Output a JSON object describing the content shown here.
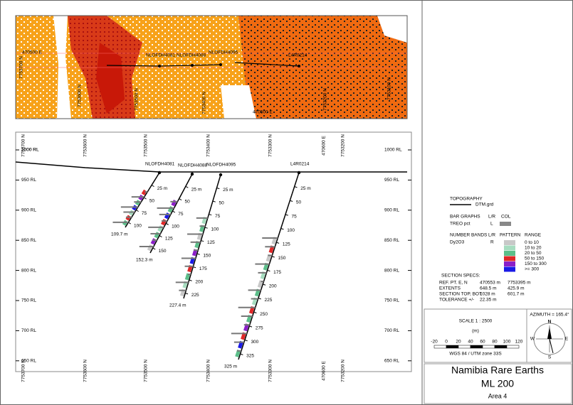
{
  "plan": {
    "labels": [
      "NLOFDH4081",
      "NLOFDH4088",
      "NLOFDH4095",
      "L4R0214",
      "470500 E",
      "470500 E",
      "7753700 N",
      "7753600 N",
      "7753500 N",
      "7753400 N",
      "7753200 N",
      "7753100 N"
    ]
  },
  "section": {
    "rl_labels": [
      "1000 RL",
      "950 RL",
      "900 RL",
      "850 RL",
      "800 RL",
      "750 RL",
      "700 RL",
      "650 RL"
    ],
    "grid_labels": [
      "7753700 N",
      "7753600 N",
      "7753500 N",
      "7753400 N",
      "7753300 N",
      "470600 E",
      "7753200 N",
      "1000 RL"
    ],
    "holes": [
      {
        "name": "NLOFDH4081",
        "depths": [
          "25 m",
          "50",
          "75",
          "100"
        ],
        "end": "109.7 m"
      },
      {
        "name": "NLOFDH4088",
        "depths": [
          "25 m",
          "50",
          "75",
          "100",
          "125",
          "150"
        ],
        "end": "152.3 m"
      },
      {
        "name": "NLOFDH4095",
        "depths": [
          "25 m",
          "50",
          "75",
          "100",
          "125",
          "150",
          "175",
          "200",
          "225"
        ],
        "end": "227.4 m"
      },
      {
        "name": "L4R0214",
        "depths": [
          "25 m",
          "50",
          "75",
          "100",
          "125",
          "150",
          "175",
          "200",
          "225",
          "250",
          "275",
          "300",
          "325"
        ],
        "end": "325 m"
      }
    ]
  },
  "legend": {
    "topography": "TOPOGRAPHY",
    "dtm": "DTM.grd",
    "bar_graphs": "BAR GRAPHS",
    "lr": "L/R",
    "col": "COL",
    "treo": "TREO pct",
    "treo_side": "L",
    "number_bands": "NUMBER BANDS",
    "lr2": "L/R",
    "pattern": "PATTERN",
    "range": "RANGE",
    "dy": "Dy2O3",
    "dy_side": "R",
    "ranges": [
      {
        "label": "0 to 10",
        "color": "#c8c8c8"
      },
      {
        "label": "10 to 20",
        "color": "#a6dcbf"
      },
      {
        "label": "20 to 50",
        "color": "#5cbf8a"
      },
      {
        "label": "50 to 150",
        "color": "#e02828"
      },
      {
        "label": "150 to 300",
        "color": "#8a1fc8"
      },
      {
        "label": ">= 300",
        "color": "#1a1ae6"
      }
    ]
  },
  "specs": {
    "title": "SECTION  SPECS:",
    "rows": [
      [
        "REF. PT.  E, N",
        "470553 m",
        "7753395 m"
      ],
      [
        "EXTENTS",
        "648.5 m",
        "425.9 m"
      ],
      [
        "SECTION TOP, BOT",
        "1028 m",
        "601.7 m"
      ],
      [
        "TOLERANCE +/-",
        "22.35 m"
      ]
    ]
  },
  "scale": {
    "title": "SCALE  1 : 2500",
    "unit": "(m)",
    "ticks": [
      "-20",
      "0",
      "20",
      "40",
      "60",
      "80",
      "100",
      "120"
    ],
    "datum": "WGS 84 / UTM zone 33S"
  },
  "compass": {
    "azimuth": "AZIMUTH = 165.4°",
    "n": "N",
    "e": "E",
    "s": "S",
    "w": "W"
  },
  "title_block": {
    "company": "Namibia Rare Earths",
    "licence": "ML 200",
    "area": "Area 4"
  }
}
